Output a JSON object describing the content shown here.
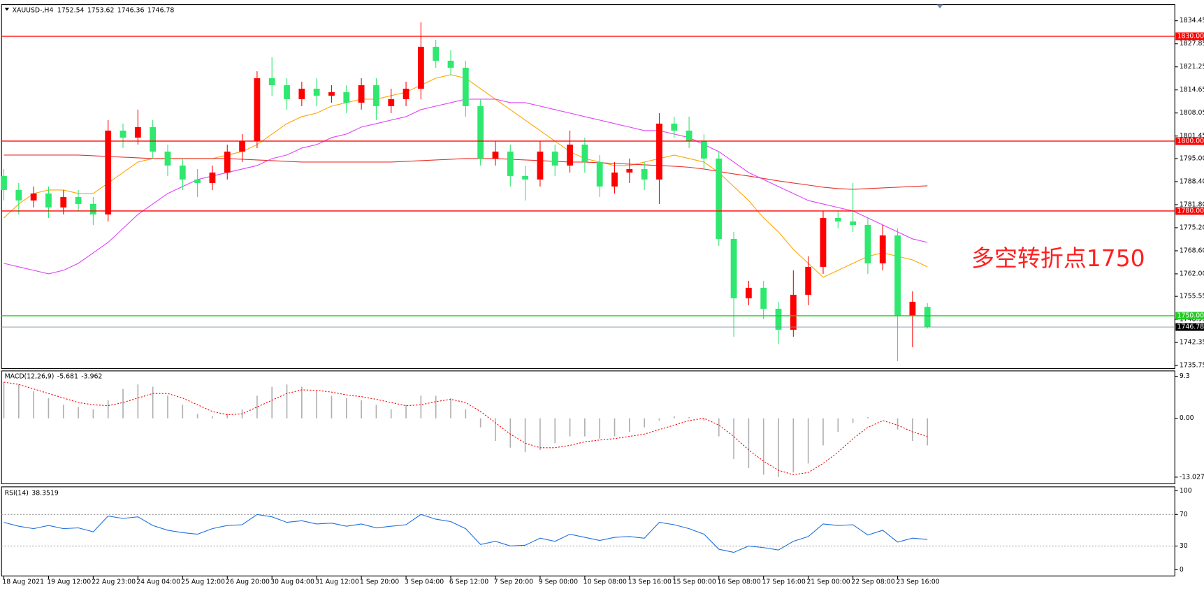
{
  "chart_data": [
    {
      "type": "candlestick",
      "title": "XAUUSD-,H4",
      "categories": [
        "18 Aug 2021",
        null,
        null,
        "19 Aug 12:00",
        null,
        null,
        "22 Aug 23:00",
        null,
        null,
        "24 Aug 04:00",
        null,
        null,
        "25 Aug 12:00",
        null,
        null,
        "26 Aug 20:00",
        null,
        null,
        "30 Aug 04:00",
        null,
        null,
        "31 Aug 12:00",
        null,
        null,
        "1 Sep 20:00",
        null,
        null,
        "3 Sep 04:00",
        null,
        null,
        "6 Sep 12:00",
        null,
        null,
        "7 Sep 20:00",
        null,
        null,
        "9 Sep 00:00",
        null,
        null,
        "10 Sep 08:00",
        null,
        null,
        "13 Sep 16:00",
        null,
        null,
        "15 Sep 00:00",
        null,
        null,
        "16 Sep 08:00",
        null,
        null,
        "17 Sep 16:00",
        null,
        null,
        "21 Sep 00:00",
        null,
        null,
        "22 Sep 08:00",
        null,
        null,
        "23 Sep 16:00",
        null,
        null
      ],
      "open": [
        1790,
        1786,
        1783,
        1785,
        1781,
        1784,
        1782,
        1779,
        1803,
        1801,
        1804,
        1797,
        1793,
        1789,
        1788,
        1791,
        1797,
        1800,
        1818,
        1816,
        1812,
        1815,
        1813,
        1814,
        1811,
        1816,
        1810,
        1812,
        1815,
        1827,
        1823,
        1821,
        1810,
        1795,
        1797,
        1790,
        1789,
        1797,
        1793,
        1799,
        1794,
        1787,
        1791,
        1792,
        1789,
        1805,
        1803,
        1800,
        1795,
        1772,
        1755,
        1758,
        1752,
        1746,
        1756,
        1764,
        1778,
        1777,
        1776,
        1765,
        1773,
        1750,
        1752.54
      ],
      "high": [
        1792,
        1788,
        1787,
        1787,
        1786,
        1786,
        1784,
        1806,
        1805,
        1809,
        1806,
        1799,
        1795,
        1792,
        1793,
        1799,
        1802,
        1820,
        1824,
        1818,
        1817,
        1818,
        1816,
        1816,
        1818,
        1818,
        1815,
        1817,
        1834,
        1829,
        1826,
        1823,
        1812,
        1800,
        1799,
        1793,
        1800,
        1799,
        1803,
        1801,
        1796,
        1794,
        1795,
        1794,
        1808,
        1807,
        1807,
        1802,
        1797,
        1774,
        1760,
        1760,
        1754,
        1763,
        1767,
        1780,
        1780,
        1788,
        1778,
        1776,
        1775,
        1757,
        1753.62
      ],
      "low": [
        1783,
        1779,
        1781,
        1778,
        1779,
        1780,
        1776,
        1777,
        1798,
        1799,
        1795,
        1790,
        1786,
        1784,
        1786,
        1789,
        1794,
        1798,
        1813,
        1809,
        1810,
        1810,
        1811,
        1808,
        1809,
        1806,
        1808,
        1810,
        1812,
        1821,
        1819,
        1807,
        1793,
        1793,
        1787,
        1783,
        1787,
        1790,
        1791,
        1791,
        1784,
        1785,
        1788,
        1786,
        1782,
        1801,
        1798,
        1792,
        1770,
        1744,
        1753,
        1749,
        1742,
        1744,
        1753,
        1762,
        1775,
        1774,
        1762,
        1763,
        1737,
        1741,
        1746.36
      ],
      "close": [
        1786,
        1783,
        1785,
        1781,
        1784,
        1782,
        1779,
        1803,
        1801,
        1804,
        1797,
        1793,
        1789,
        1788,
        1791,
        1797,
        1800,
        1818,
        1816,
        1812,
        1815,
        1813,
        1814,
        1811,
        1816,
        1810,
        1812,
        1815,
        1827,
        1823,
        1821,
        1810,
        1795,
        1797,
        1790,
        1789,
        1797,
        1793,
        1799,
        1794,
        1787,
        1791,
        1792,
        1789,
        1805,
        1803,
        1800,
        1795,
        1772,
        1755,
        1758,
        1752,
        1746,
        1756,
        1764,
        1778,
        1777,
        1776,
        1765,
        1773,
        1750,
        1754,
        1746.78
      ],
      "up_color": "#ff0000",
      "down_color": "#2ee86f",
      "moving_averages": [
        {
          "color": "#ffa500",
          "values": [
            1778,
            1782,
            1785,
            1786,
            1786,
            1785,
            1785,
            1788,
            1791,
            1794,
            1795,
            1795,
            1795,
            1795,
            1795,
            1796,
            1797,
            1799,
            1802,
            1805,
            1807,
            1808,
            1810,
            1811,
            1812,
            1812,
            1813,
            1814,
            1816,
            1818,
            1819,
            1818,
            1815,
            1812,
            1809,
            1806,
            1803,
            1800,
            1797,
            1795,
            1794,
            1793,
            1793,
            1794,
            1795,
            1796,
            1795,
            1794,
            1791,
            1787,
            1783,
            1778,
            1774,
            1769,
            1765,
            1761,
            1763,
            1765,
            1767,
            1768,
            1767,
            1766,
            1764
          ]
        },
        {
          "color": "#e8302a",
          "values": [
            1796,
            1796,
            1796,
            1796,
            1796,
            1796,
            1795.8,
            1795.6,
            1795.4,
            1795.2,
            1795,
            1795,
            1795,
            1795,
            1795,
            1795,
            1794.8,
            1794.6,
            1794.4,
            1794.2,
            1794,
            1794,
            1794,
            1794,
            1794,
            1794,
            1794,
            1794.2,
            1794.4,
            1794.6,
            1794.8,
            1795,
            1795,
            1795,
            1794.8,
            1794.6,
            1794.4,
            1794.2,
            1794,
            1794,
            1793.8,
            1793.6,
            1793.4,
            1793.2,
            1793,
            1792.8,
            1792.5,
            1792,
            1791.3,
            1790.6,
            1790,
            1789.3,
            1788.6,
            1788,
            1787.4,
            1786.8,
            1786.4,
            1786.2,
            1786.4,
            1786.6,
            1786.8,
            1787,
            1787.2
          ]
        },
        {
          "color": "#e040fb",
          "values": [
            1765,
            1764,
            1763,
            1762,
            1763,
            1765,
            1768,
            1771,
            1775,
            1779,
            1782,
            1785,
            1787,
            1789,
            1790,
            1791,
            1792,
            1793,
            1795,
            1796,
            1798,
            1799,
            1801,
            1802,
            1804,
            1805,
            1806,
            1807,
            1809,
            1810,
            1811,
            1812,
            1812,
            1812,
            1811,
            1811,
            1810,
            1809,
            1808,
            1807,
            1806,
            1805,
            1804,
            1803,
            1803,
            1802,
            1801,
            1799,
            1797,
            1794,
            1791,
            1789,
            1787,
            1785,
            1783,
            1782,
            1781,
            1780,
            1778,
            1776,
            1774,
            1772,
            1771
          ]
        }
      ],
      "hlines": [
        {
          "value": 1830,
          "label": "1830.00",
          "color": "#ff0000"
        },
        {
          "value": 1800,
          "label": "1800.00",
          "color": "#ff0000"
        },
        {
          "value": 1780,
          "label": "1780.00",
          "color": "#ff0000"
        },
        {
          "value": 1750,
          "label": "1750.00",
          "color": "#22cc22"
        }
      ],
      "last_price": 1746.78,
      "annotation": "多空转折点1750",
      "ylim": [
        1734.87,
        1839.07
      ],
      "yticks": [
        1834.45,
        1827.85,
        1821.25,
        1814.65,
        1808.05,
        1801.45,
        {
          "value": 1795,
          "label": "1795.00"
        },
        {
          "value": 1788.4,
          "label": "1788.40"
        },
        {
          "value": 1781.8,
          "label": "1781.80"
        },
        {
          "value": 1775.2,
          "label": "1775.20"
        },
        {
          "value": 1768.6,
          "label": "1768.60"
        },
        {
          "value": 1762,
          "label": "1762.00"
        },
        1755.55,
        1748.95,
        1742.35,
        1735.75
      ]
    },
    {
      "type": "macd",
      "title": "MACD(12,26,9)",
      "title_values": [
        -5.681,
        -3.962
      ],
      "histogram_color": "#b0b0b0",
      "signal_color": "#ff0000",
      "histogram": [
        8,
        7.5,
        6,
        4.5,
        3,
        2.5,
        2,
        4,
        6.5,
        7.5,
        7,
        5,
        3,
        1,
        0.5,
        1,
        2,
        5,
        7,
        7.5,
        7,
        6,
        5,
        4.5,
        4,
        3,
        2,
        3,
        5,
        5,
        4.5,
        2,
        -2,
        -5,
        -6.5,
        -7.5,
        -7,
        -5.5,
        -4,
        -4,
        -4.5,
        -4,
        -3,
        -2,
        -0.5,
        0.5,
        0.3,
        -0.5,
        -4,
        -9,
        -11,
        -12.5,
        -13,
        -12,
        -10,
        -6,
        -3,
        -1,
        0.3,
        0,
        -2.5,
        -5,
        -6
      ],
      "signal": [
        8,
        7.5,
        6.5,
        5.5,
        4.5,
        3.5,
        3,
        2.8,
        3.5,
        4.5,
        5.5,
        5.5,
        4.5,
        3,
        1.5,
        0.8,
        1,
        2.5,
        4,
        5.5,
        6.3,
        6.2,
        5.8,
        5.2,
        4.8,
        4.2,
        3.5,
        2.8,
        3,
        3.7,
        4.2,
        3.5,
        1.5,
        -1,
        -3.5,
        -5.5,
        -6.5,
        -6.5,
        -6,
        -5.2,
        -4.8,
        -4.5,
        -4,
        -3.5,
        -2.5,
        -1.5,
        -0.5,
        0,
        -1.5,
        -4,
        -7,
        -9.5,
        -11.5,
        -12.5,
        -12,
        -10,
        -7.5,
        -4.5,
        -2,
        -0.5,
        -1.5,
        -3,
        -4
      ],
      "ylim": [
        -14.5,
        10.5
      ],
      "yticks": [
        9.3,
        {
          "value": 0,
          "label": "0.00"
        },
        -13.027
      ]
    },
    {
      "type": "line",
      "title": "RSI(14)",
      "title_values": [
        38.3519
      ],
      "color": "#1e6fe0",
      "values": [
        60,
        55,
        52,
        56,
        52,
        53,
        48,
        68,
        65,
        67,
        56,
        50,
        47,
        45,
        52,
        56,
        57,
        70,
        67,
        60,
        62,
        58,
        59,
        55,
        58,
        53,
        55,
        57,
        70,
        64,
        61,
        52,
        32,
        36,
        30,
        31,
        40,
        36,
        45,
        41,
        37,
        41,
        42,
        40,
        60,
        57,
        52,
        45,
        26,
        22,
        30,
        28,
        25,
        36,
        42,
        58,
        56,
        57,
        44,
        50,
        35,
        40,
        38.3519
      ],
      "levels": [
        70,
        30
      ],
      "ylim": [
        -7.9,
        104.95
      ],
      "yticks": [
        100,
        70,
        30,
        0
      ]
    }
  ]
}
